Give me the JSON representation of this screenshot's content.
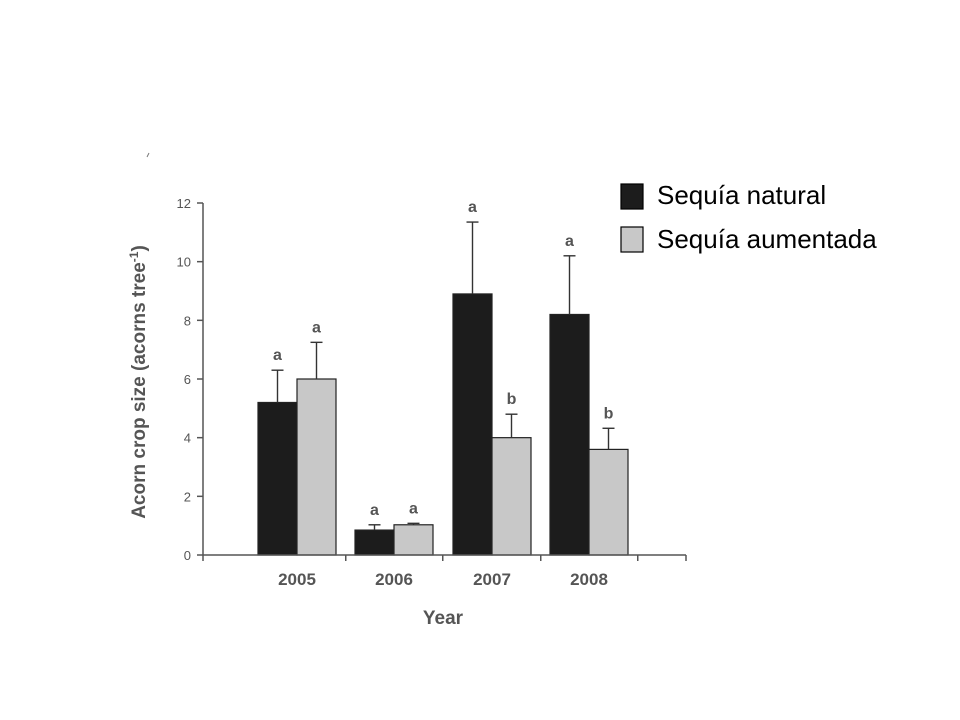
{
  "chart_data": {
    "type": "bar",
    "categories": [
      "2005",
      "2006",
      "2007",
      "2008"
    ],
    "series": [
      {
        "name": "Sequía natural",
        "color": "#1c1c1c",
        "values": [
          5.2,
          0.85,
          8.9,
          8.2
        ],
        "errors": [
          1.1,
          0.18,
          2.45,
          2.0
        ],
        "letters": [
          "a",
          "a",
          "a",
          "a"
        ]
      },
      {
        "name": "Sequía aumentada",
        "color": "#c8c8c8",
        "values": [
          6.0,
          1.03,
          4.0,
          3.6
        ],
        "errors": [
          1.25,
          0.05,
          0.8,
          0.72
        ],
        "letters": [
          "a",
          "a",
          "b",
          "b"
        ]
      }
    ],
    "xlabel": "Year",
    "ylabel": "Acorn crop size (acorns tree",
    "ylabel_superscript": "-1",
    "ylabel_suffix": ")",
    "ylim": [
      0,
      12
    ],
    "yticks": [
      0,
      2,
      4,
      6,
      8,
      10,
      12
    ],
    "grid": false,
    "legend_position": "top-right"
  }
}
